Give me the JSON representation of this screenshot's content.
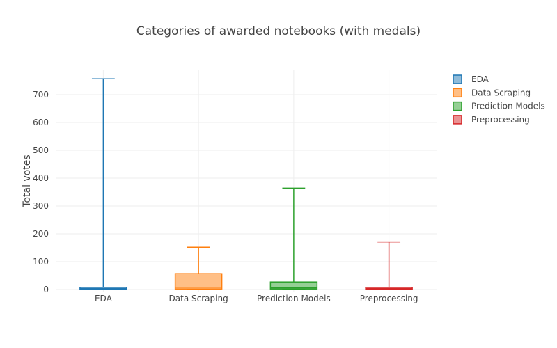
{
  "chart_data": {
    "type": "box",
    "title": "Categories of awarded notebooks (with medals)",
    "xlabel": "",
    "ylabel": "Total votes",
    "ylim": [
      -10,
      790
    ],
    "yticks": [
      0,
      100,
      200,
      300,
      400,
      500,
      600,
      700
    ],
    "categories": [
      "EDA",
      "Data Scraping",
      "Prediction Models",
      "Preprocessing"
    ],
    "grid": true,
    "legend_position": "top-right",
    "series": [
      {
        "name": "EDA",
        "color": "#1f77b4",
        "fill": "#8fbbd9",
        "min": 0,
        "q1": 1,
        "median": 3,
        "q3": 8,
        "max": 757
      },
      {
        "name": "Data Scraping",
        "color": "#ff7f0e",
        "fill": "#ffbf86",
        "min": 0,
        "q1": 2,
        "median": 8,
        "q3": 57,
        "max": 152
      },
      {
        "name": "Prediction Models",
        "color": "#2ca02c",
        "fill": "#95cf95",
        "min": 0,
        "q1": 2,
        "median": 6,
        "q3": 27,
        "max": 364
      },
      {
        "name": "Preprocessing",
        "color": "#d62728",
        "fill": "#ea9293",
        "min": 0,
        "q1": 1,
        "median": 3,
        "q3": 8,
        "max": 171
      }
    ]
  }
}
